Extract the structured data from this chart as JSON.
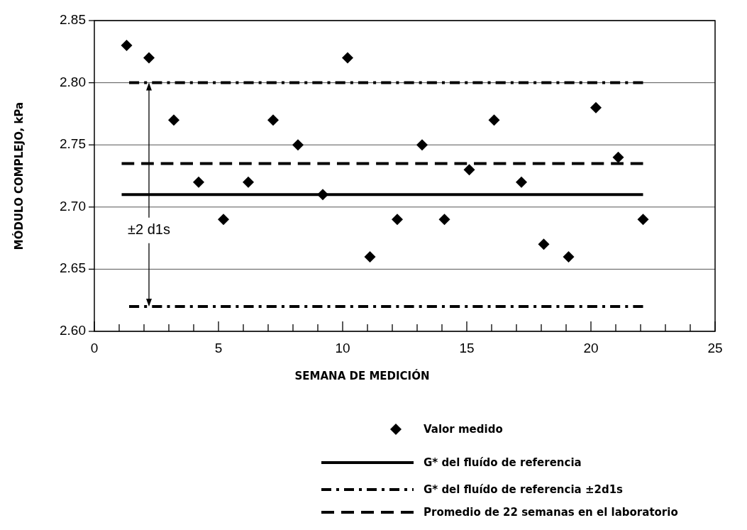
{
  "chart_data": {
    "type": "scatter",
    "xlabel": "SEMANA DE MEDICIÓN",
    "ylabel": "MÓDULO COMPLEJO, kPa",
    "xlim": [
      0,
      25
    ],
    "ylim": [
      2.6,
      2.85
    ],
    "xticks": [
      0,
      {
        "value": 1,
        "label": null
      },
      {
        "value": 2,
        "label": null
      },
      {
        "value": 3,
        "label": null
      },
      {
        "value": 4,
        "label": null
      },
      5,
      {
        "value": 6,
        "label": null
      },
      {
        "value": 7,
        "label": null
      },
      {
        "value": 8,
        "label": null
      },
      {
        "value": 9,
        "label": null
      },
      10,
      {
        "value": 11,
        "label": null
      },
      {
        "value": 12,
        "label": null
      },
      {
        "value": 13,
        "label": null
      },
      {
        "value": 14,
        "label": null
      },
      15,
      {
        "value": 16,
        "label": null
      },
      {
        "value": 17,
        "label": null
      },
      {
        "value": 18,
        "label": null
      },
      {
        "value": 19,
        "label": null
      },
      20,
      {
        "value": 21,
        "label": null
      },
      {
        "value": 22,
        "label": null
      },
      {
        "value": 23,
        "label": null
      },
      {
        "value": 24,
        "label": null
      },
      25
    ],
    "yticks": [
      {
        "value": 2.6,
        "label": "2.60"
      },
      {
        "value": 2.65,
        "label": "2.65"
      },
      {
        "value": 2.7,
        "label": "2.70"
      },
      {
        "value": 2.75,
        "label": "2.75"
      },
      {
        "value": 2.8,
        "label": "2.80"
      },
      {
        "value": 2.85,
        "label": "2.85"
      }
    ],
    "grid": "y",
    "legend": "bottom",
    "series": [
      {
        "name": "Valor medido",
        "marker": "diamond",
        "color": "#000000",
        "x": [
          1.3,
          2.2,
          3.2,
          4.2,
          5.2,
          6.2,
          7.2,
          8.2,
          9.2,
          10.2,
          11.1,
          12.2,
          13.2,
          14.1,
          15.1,
          16.1,
          17.2,
          18.1,
          19.1,
          20.2,
          21.1,
          22.1
        ],
        "values": [
          2.83,
          2.82,
          2.77,
          2.72,
          2.69,
          2.72,
          2.77,
          2.75,
          2.71,
          2.82,
          2.66,
          2.69,
          2.75,
          2.69,
          2.73,
          2.77,
          2.72,
          2.67,
          2.66,
          2.78,
          2.74,
          2.69
        ]
      },
      {
        "name": "G* del fluído de referencia",
        "type": "line",
        "line_style": "solid",
        "color": "#000000",
        "x": [
          1.1,
          22.1
        ],
        "values": [
          2.71,
          2.71
        ]
      },
      {
        "name": "G* del fluído de referencia ±2d1s",
        "type": "line",
        "line_style": "dashdot",
        "color": "#000000",
        "x": [
          1.4,
          22.1
        ],
        "values": [
          2.8,
          2.8
        ]
      },
      {
        "type": "line",
        "line_style": "dashdot",
        "color": "#000000",
        "x": [
          1.4,
          22.1
        ],
        "values": [
          2.62,
          2.62
        ]
      },
      {
        "name": "Promedio de 22 semanas en el laboratorio",
        "type": "line",
        "line_style": "dashed",
        "color": "#000000",
        "x": [
          1.1,
          22.1
        ],
        "values": [
          2.735,
          2.735
        ]
      }
    ],
    "annotations": [
      {
        "text": "±2 d1s",
        "x": 2.2,
        "y": 2.8
      }
    ]
  }
}
